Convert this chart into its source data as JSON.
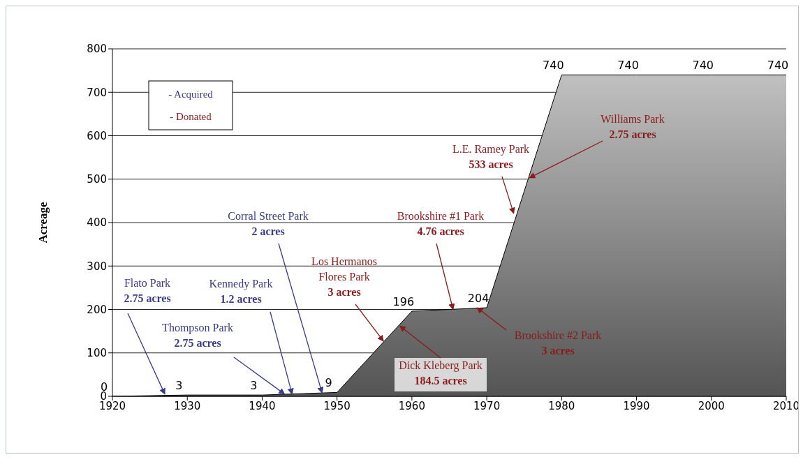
{
  "chart_data": {
    "type": "area",
    "ylabel": "Acreage",
    "x": [
      1920,
      1930,
      1940,
      1950,
      1960,
      1970,
      1980,
      1990,
      2000,
      2010
    ],
    "values": [
      0,
      3,
      3,
      9,
      196,
      204,
      740,
      740,
      740,
      740
    ],
    "color": "#8c8c8c",
    "data_labels": true,
    "xlim": [
      1920,
      2010
    ],
    "xticks": [
      1920,
      1930,
      1940,
      1950,
      1960,
      1970,
      1980,
      1990,
      2000,
      2010
    ],
    "ylim": [
      0,
      800
    ],
    "yticks": [
      0,
      100,
      200,
      300,
      400,
      500,
      600,
      700,
      800
    ],
    "grid": "y",
    "annotations": [
      {
        "text": "Flato Park\n2.75 acres",
        "x": 1927,
        "y": 5
      },
      {
        "text": "Thompson Park\n2.75 acres",
        "x": 1943,
        "y": 5
      },
      {
        "text": "Kennedy Park\n1.2 acres",
        "x": 1944,
        "y": 5
      },
      {
        "text": "Corral Street Park\n2 acres",
        "x": 1948,
        "y": 8
      },
      {
        "text": "Los Hermanos\nFlores Park\n3 acres",
        "x": 1956.2,
        "y": 127
      },
      {
        "text": "Dick Kleberg Park\n184.5 acres",
        "x": 1958.4,
        "y": 162
      },
      {
        "text": "Brookshire #1 Park\n4.76 acres",
        "x": 1965.5,
        "y": 200
      },
      {
        "text": "Brookshire #2 Park\n3 acres",
        "x": 1968.7,
        "y": 204
      },
      {
        "text": "L.E. Ramey Park\n533 acres",
        "x": 1973.6,
        "y": 421
      },
      {
        "text": "Williams Park\n2.75 acres",
        "x": 1975.7,
        "y": 503
      },
      "- Acquired",
      "- Donated"
    ]
  }
}
